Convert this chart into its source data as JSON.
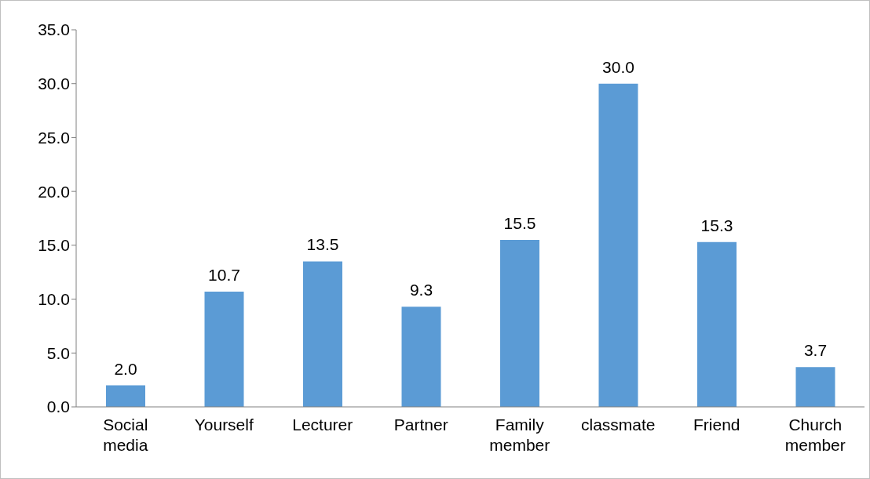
{
  "chart_data": {
    "type": "bar",
    "categories": [
      "Social media",
      "Yourself",
      "Lecturer",
      "Partner",
      "Family member",
      "classmate",
      "Friend",
      "Church member"
    ],
    "values": [
      2.0,
      10.7,
      13.5,
      9.3,
      15.5,
      30.0,
      15.3,
      3.7
    ],
    "color": "#5b9bd5",
    "ylim": [
      0,
      35
    ],
    "yticks": [
      {
        "value": 0,
        "label": "0.0"
      },
      {
        "value": 5,
        "label": "5.0"
      },
      {
        "value": 10,
        "label": "10.0"
      },
      {
        "value": 15,
        "label": "15.0"
      },
      {
        "value": 20,
        "label": "20.0"
      },
      {
        "value": 25,
        "label": "25.0"
      },
      {
        "value": 30,
        "label": "30.0"
      },
      {
        "value": 35,
        "label": "35.0"
      }
    ],
    "value_labels": [
      "2.0",
      "10.7",
      "13.5",
      "9.3",
      "15.5",
      "30.0",
      "15.3",
      "3.7"
    ],
    "grid": false,
    "legend": false
  }
}
